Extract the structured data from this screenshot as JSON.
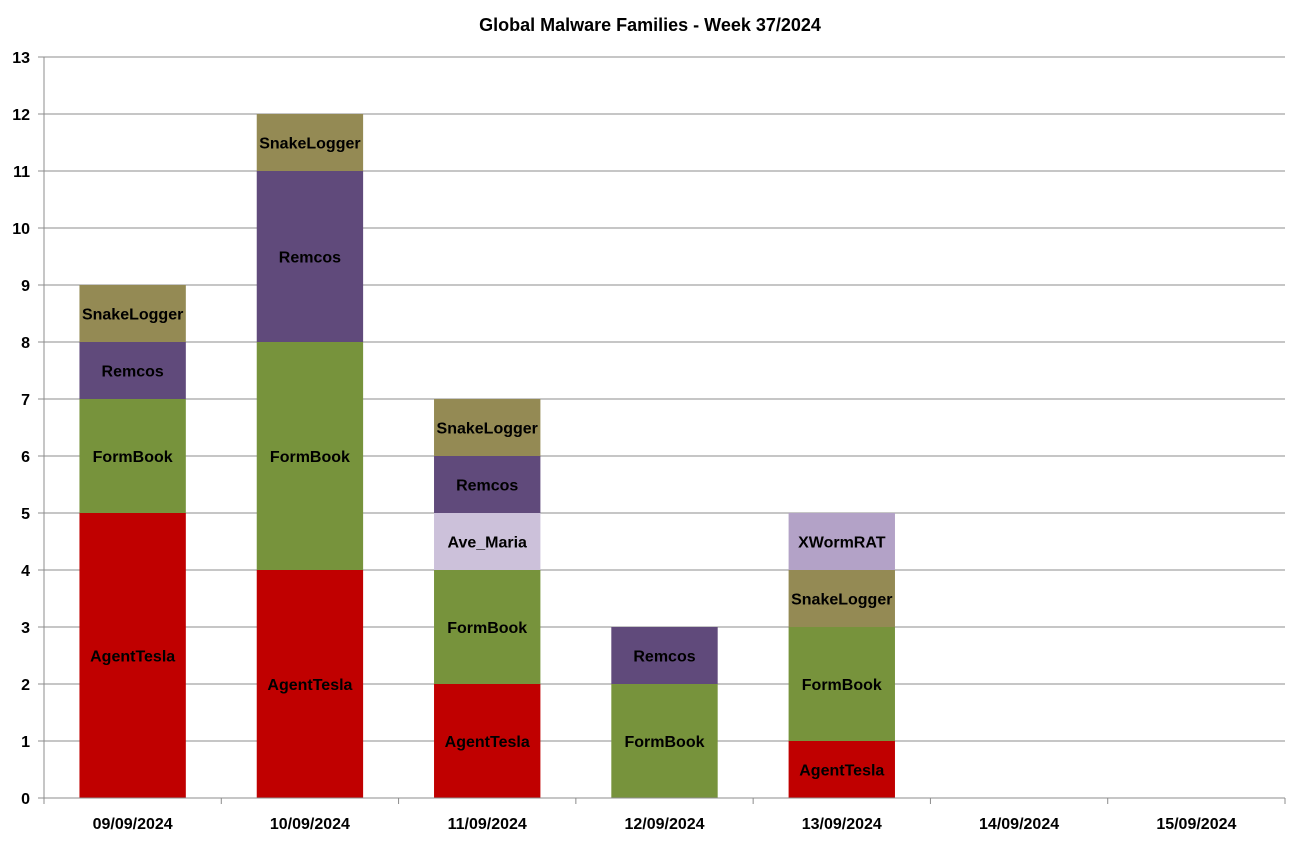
{
  "chart_data": {
    "type": "bar",
    "stacked": true,
    "title": "Global Malware Families - Week 37/2024",
    "xlabel": "",
    "ylabel": "",
    "ylim": [
      0,
      13
    ],
    "yticks": [
      "0",
      "1",
      "2",
      "3",
      "4",
      "5",
      "6",
      "7",
      "8",
      "9",
      "10",
      "11",
      "12",
      "13"
    ],
    "grid": true,
    "legend": "none",
    "categories": [
      "09/09/2024",
      "10/09/2024",
      "11/09/2024",
      "12/09/2024",
      "13/09/2024",
      "14/09/2024",
      "15/09/2024"
    ],
    "colors": {
      "AgentTesla": "#c00000",
      "FormBook": "#77933c",
      "Ave_Maria": "#ccc1da",
      "Remcos": "#604a7b",
      "SnakeLogger": "#948a54",
      "XWormRAT": "#b3a2c7"
    },
    "stacks": [
      [
        {
          "name": "AgentTesla",
          "value": 5
        },
        {
          "name": "FormBook",
          "value": 2
        },
        {
          "name": "Remcos",
          "value": 1
        },
        {
          "name": "SnakeLogger",
          "value": 1
        }
      ],
      [
        {
          "name": "AgentTesla",
          "value": 4
        },
        {
          "name": "FormBook",
          "value": 4
        },
        {
          "name": "Remcos",
          "value": 3
        },
        {
          "name": "SnakeLogger",
          "value": 1
        }
      ],
      [
        {
          "name": "AgentTesla",
          "value": 2
        },
        {
          "name": "FormBook",
          "value": 2
        },
        {
          "name": "Ave_Maria",
          "value": 1
        },
        {
          "name": "Remcos",
          "value": 1
        },
        {
          "name": "SnakeLogger",
          "value": 1
        }
      ],
      [
        {
          "name": "FormBook",
          "value": 2
        },
        {
          "name": "Remcos",
          "value": 1
        }
      ],
      [
        {
          "name": "AgentTesla",
          "value": 1
        },
        {
          "name": "FormBook",
          "value": 2
        },
        {
          "name": "SnakeLogger",
          "value": 1
        },
        {
          "name": "XWormRAT",
          "value": 1
        }
      ],
      [],
      []
    ]
  }
}
